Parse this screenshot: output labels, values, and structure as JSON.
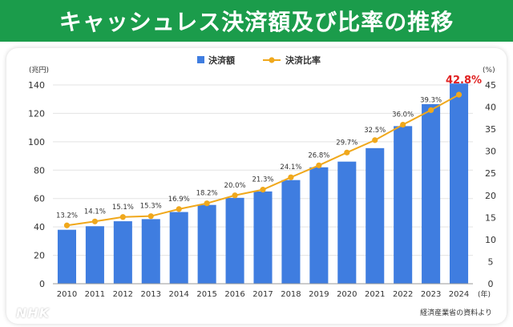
{
  "header": {
    "title": "キャッシュレス決済額及び比率の推移"
  },
  "footer": {
    "source": "経済産業省の資料より",
    "logo": "NHK"
  },
  "colors": {
    "banner": "#1b9c4b",
    "bar": "#3f7de0",
    "line": "#f0a81c",
    "highlight": "#e02020",
    "grid": "#e3e3e3"
  },
  "chart_data": {
    "type": "bar+line",
    "categories": [
      "2010",
      "2011",
      "2012",
      "2013",
      "2014",
      "2015",
      "2016",
      "2017",
      "2018",
      "2019",
      "2020",
      "2021",
      "2022",
      "2023",
      "2024"
    ],
    "x_unit_label": "(年)",
    "series": [
      {
        "name": "決済額",
        "type": "bar",
        "axis": "left",
        "values": [
          38,
          40.5,
          44,
          45.5,
          50.5,
          55.5,
          60.5,
          65,
          73,
          82,
          86,
          95.5,
          111,
          126.5,
          141
        ]
      },
      {
        "name": "決済比率",
        "type": "line",
        "axis": "right",
        "values": [
          13.2,
          14.1,
          15.1,
          15.3,
          16.9,
          18.2,
          20.0,
          21.3,
          24.1,
          26.8,
          29.7,
          32.5,
          36.0,
          39.3,
          42.8
        ],
        "labels": [
          "13.2%",
          "14.1%",
          "15.1%",
          "15.3%",
          "16.9%",
          "18.2%",
          "20.0%",
          "21.3%",
          "24.1%",
          "26.8%",
          "29.7%",
          "32.5%",
          "36.0%",
          "39.3%",
          "42.8%"
        ]
      }
    ],
    "y_left": {
      "label": "(兆円)",
      "min": 0,
      "max": 140,
      "ticks": [
        0,
        20,
        40,
        60,
        80,
        100,
        120,
        140
      ]
    },
    "y_right": {
      "label": "(%)",
      "min": 0,
      "max": 45,
      "ticks": [
        0,
        5,
        10,
        15,
        20,
        25,
        30,
        35,
        40,
        45
      ]
    },
    "grid": true,
    "legend_position": "top-center",
    "highlight_last": true
  }
}
